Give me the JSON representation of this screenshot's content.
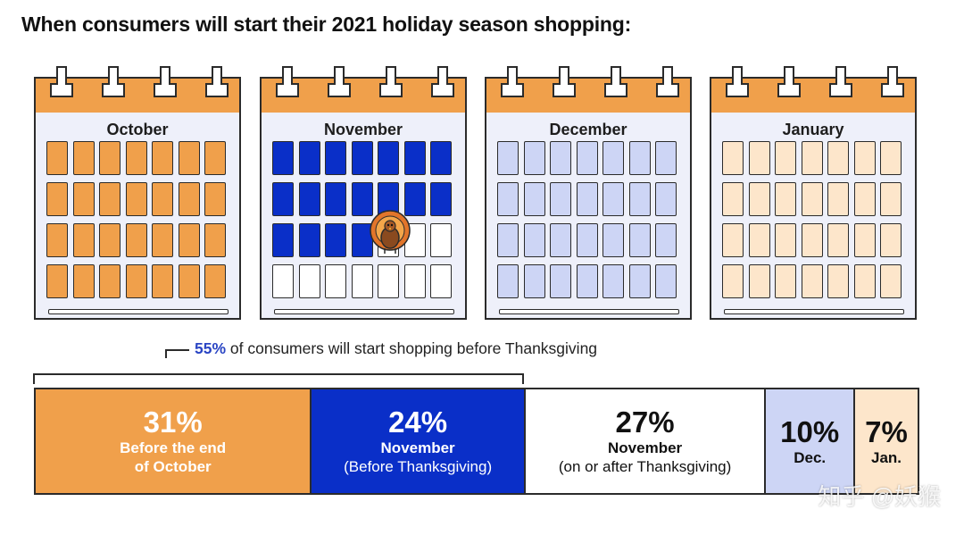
{
  "title": "When consumers will start their 2021 holiday season shopping:",
  "calendars": [
    {
      "month": "October",
      "header_color": "#f0a04b",
      "fill_color": "#f0a04b",
      "filled_cells": 28,
      "total_cells": 28
    },
    {
      "month": "November",
      "header_color": "#f0a04b",
      "fill_color": "#0a2fc8",
      "filled_cells": 18,
      "total_cells": 28
    },
    {
      "month": "December",
      "header_color": "#f0a04b",
      "fill_color": "#cdd5f5",
      "filled_cells": 28,
      "total_cells": 28
    },
    {
      "month": "January",
      "header_color": "#f0a04b",
      "fill_color": "#fde6cb",
      "filled_cells": 28,
      "total_cells": 28
    }
  ],
  "note": {
    "pct": "55%",
    "text": " of consumers will start shopping before Thanksgiving"
  },
  "chart_data": {
    "type": "bar",
    "orientation": "horizontal-stacked",
    "title": "When consumers will start their 2021 holiday season shopping:",
    "unit": "%",
    "segments": [
      {
        "value": 31,
        "value_label": "31%",
        "line1": "Before the end",
        "line2": "of October",
        "color": "#f0a04b",
        "text_color": "#ffffff"
      },
      {
        "value": 24,
        "value_label": "24%",
        "line1": "November",
        "line2": "(Before Thanksgiving)",
        "color": "#0a2fc8",
        "text_color": "#ffffff"
      },
      {
        "value": 27,
        "value_label": "27%",
        "line1": "November",
        "line2": "(on or after Thanksgiving)",
        "color": "#ffffff",
        "text_color": "#111111"
      },
      {
        "value": 10,
        "value_label": "10%",
        "line1": "Dec.",
        "line2": "",
        "color": "#cdd5f5",
        "text_color": "#111111"
      },
      {
        "value": 7,
        "value_label": "7%",
        "line1": "Jan.",
        "line2": "",
        "color": "#fde6cb",
        "text_color": "#111111"
      }
    ],
    "annotation": "55% of consumers will start shopping before Thanksgiving"
  },
  "watermark": "知乎 @妖猴"
}
